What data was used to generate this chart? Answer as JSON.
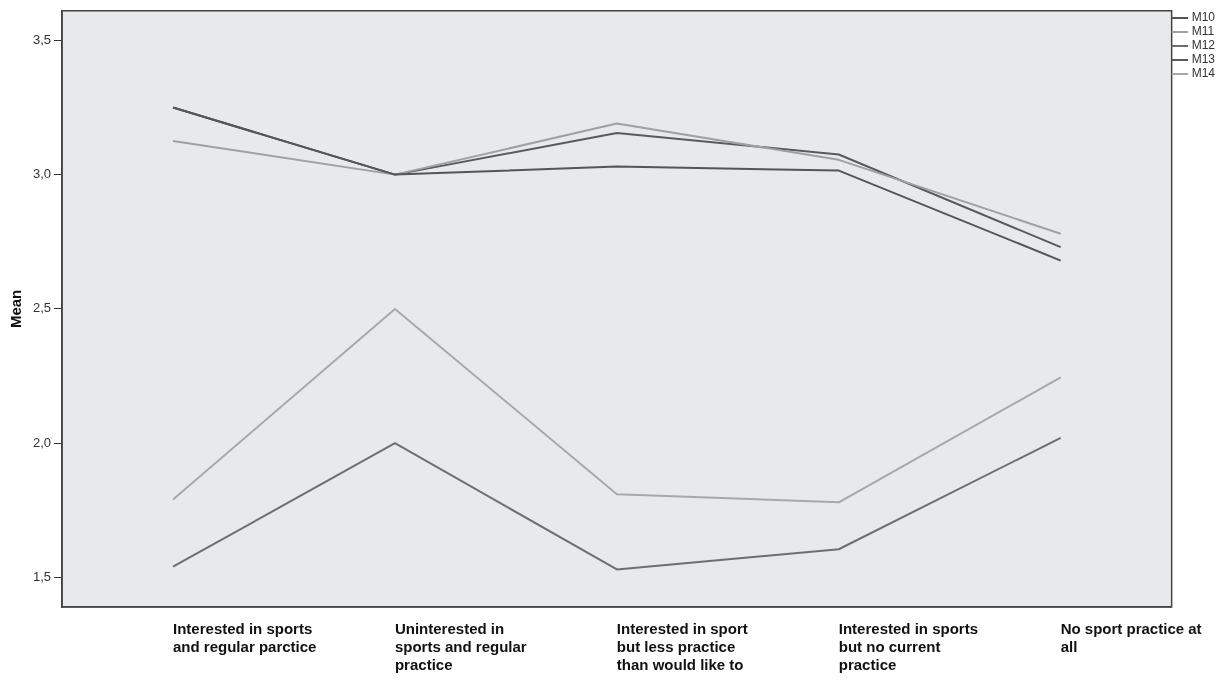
{
  "chart_data": {
    "type": "line",
    "ylabel": "Mean",
    "categories": [
      "Interested in sports and regular parctice",
      "Uninterested in sports and regular practice",
      "Interested in sport but less practice than would like to",
      "Interested in sports but no current practice",
      "No sport practice at all"
    ],
    "series": [
      {
        "name": "M10",
        "color": "#555555",
        "values": [
          3.25,
          3.0,
          3.03,
          3.015,
          2.68
        ]
      },
      {
        "name": "M11",
        "color": "#a0a0a0",
        "values": [
          3.125,
          3.0,
          3.19,
          3.055,
          2.78
        ]
      },
      {
        "name": "M12",
        "color": "#6e6e6e",
        "values": [
          1.54,
          2.0,
          1.53,
          1.605,
          2.02
        ]
      },
      {
        "name": "M13",
        "color": "#5a5a5a",
        "values": [
          3.25,
          3.0,
          3.155,
          3.075,
          2.73
        ]
      },
      {
        "name": "M14",
        "color": "#a8a8a8",
        "values": [
          1.79,
          2.5,
          1.81,
          1.78,
          2.245
        ]
      }
    ],
    "ylim": [
      1.39,
      3.61
    ],
    "yticks": [
      {
        "value": 1.5,
        "label": "1,5"
      },
      {
        "value": 2.0,
        "label": "2,0"
      },
      {
        "value": 2.5,
        "label": "2,5"
      },
      {
        "value": 3.0,
        "label": "3,0"
      },
      {
        "value": 3.5,
        "label": "3,5"
      }
    ],
    "grid": false,
    "legend": "top right",
    "marker": "none",
    "line_style": "solid"
  }
}
